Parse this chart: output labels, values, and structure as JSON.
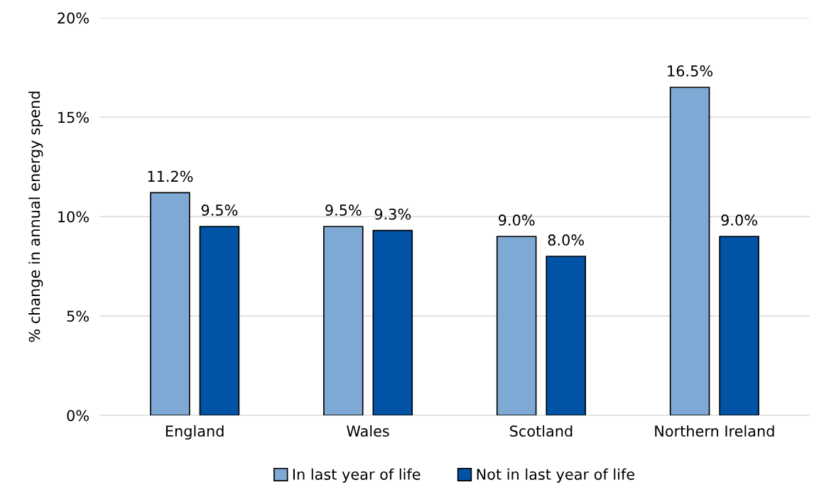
{
  "chart_data": {
    "type": "bar",
    "ylabel": "% change in annual energy spend",
    "categories": [
      "England",
      "Wales",
      "Scotland",
      "Northern Ireland"
    ],
    "series": [
      {
        "name": "In last year of life",
        "color": "#7fa9d5",
        "values": [
          11.2,
          9.5,
          9.0,
          16.5
        ],
        "value_labels": [
          "11.2%",
          "9.5%",
          "9.0%",
          "16.5%"
        ]
      },
      {
        "name": "Not in last year of life",
        "color": "#0153a5",
        "values": [
          9.5,
          9.3,
          8.0,
          9.0
        ],
        "value_labels": [
          "9.5%",
          "9.3%",
          "8.0%",
          "9.0%"
        ]
      }
    ],
    "ylim": [
      0,
      20
    ],
    "yticks": [
      {
        "value": 0,
        "label": "0%"
      },
      {
        "value": 5,
        "label": "5%"
      },
      {
        "value": 10,
        "label": "10%"
      },
      {
        "value": 15,
        "label": "15%"
      },
      {
        "value": 20,
        "label": "20%"
      }
    ],
    "grid": "y",
    "legend": "bottom"
  }
}
